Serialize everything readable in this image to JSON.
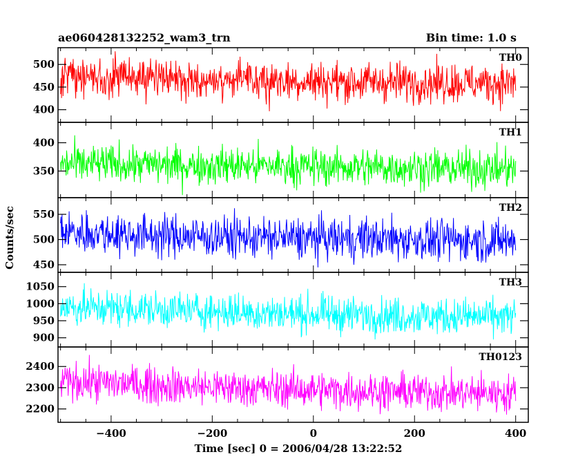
{
  "header": {
    "left_title": "ae060428132252_wam3_trn",
    "right_title": "Bin time: 1.0 s"
  },
  "chart_data": {
    "type": "line",
    "title": "ae060428132252_wam3_trn",
    "bin_time": "Bin time: 1.0 s",
    "xlabel": "Time [sec] 0 = 2006/04/28 13:22:52",
    "ylabel": "Counts/sec",
    "xlim": [
      -505,
      425
    ],
    "x_ticks": [
      -400,
      -200,
      0,
      200,
      400
    ],
    "x_range": [
      -500,
      400
    ],
    "grid": false,
    "panels": [
      {
        "name": "TH0",
        "color": "#ff0000",
        "ylim": [
          372,
          537
        ],
        "y_ticks": [
          400,
          450,
          500
        ],
        "x": [
          -500,
          -400,
          -300,
          -200,
          -100,
          0,
          100,
          200,
          300,
          400
        ],
        "values": [
          471,
          470,
          466,
          466,
          464,
          463,
          461,
          461,
          459,
          459
        ],
        "noise": 22,
        "min": 380,
        "max": 537
      },
      {
        "name": "TH1",
        "color": "#00ff00",
        "ylim": [
          303,
          436
        ],
        "y_ticks": [
          350,
          400
        ],
        "x": [
          -500,
          -400,
          -300,
          -200,
          -100,
          0,
          100,
          200,
          300,
          400
        ],
        "values": [
          362,
          362,
          361,
          360,
          359,
          358,
          357,
          356,
          354,
          353
        ],
        "noise": 17,
        "min": 303,
        "max": 432
      },
      {
        "name": "TH2",
        "color": "#0000ff",
        "ylim": [
          435,
          583
        ],
        "y_ticks": [
          450,
          500,
          550
        ],
        "x": [
          -500,
          -400,
          -300,
          -200,
          -100,
          0,
          100,
          200,
          300,
          400
        ],
        "values": [
          515,
          512,
          508,
          506,
          504,
          502,
          502,
          500,
          499,
          498
        ],
        "noise": 21,
        "min": 440,
        "max": 580
      },
      {
        "name": "TH3",
        "color": "#00ffff",
        "ylim": [
          873,
          1092
        ],
        "y_ticks": [
          900,
          950,
          1000,
          1050
        ],
        "x": [
          -500,
          -400,
          -300,
          -200,
          -100,
          0,
          100,
          200,
          300,
          400
        ],
        "values": [
          990,
          987,
          982,
          978,
          973,
          970,
          967,
          964,
          962,
          960
        ],
        "noise": 27,
        "min": 895,
        "max": 1082
      },
      {
        "name": "TH0123",
        "color": "#ff00ff",
        "ylim": [
          2137,
          2492
        ],
        "y_ticks": [
          2200,
          2300,
          2400
        ],
        "x": [
          -500,
          -400,
          -300,
          -200,
          -100,
          0,
          100,
          200,
          300,
          400
        ],
        "values": [
          2330,
          2322,
          2311,
          2302,
          2296,
          2290,
          2284,
          2280,
          2275,
          2272
        ],
        "noise": 44,
        "min": 2150,
        "max": 2480
      }
    ]
  }
}
